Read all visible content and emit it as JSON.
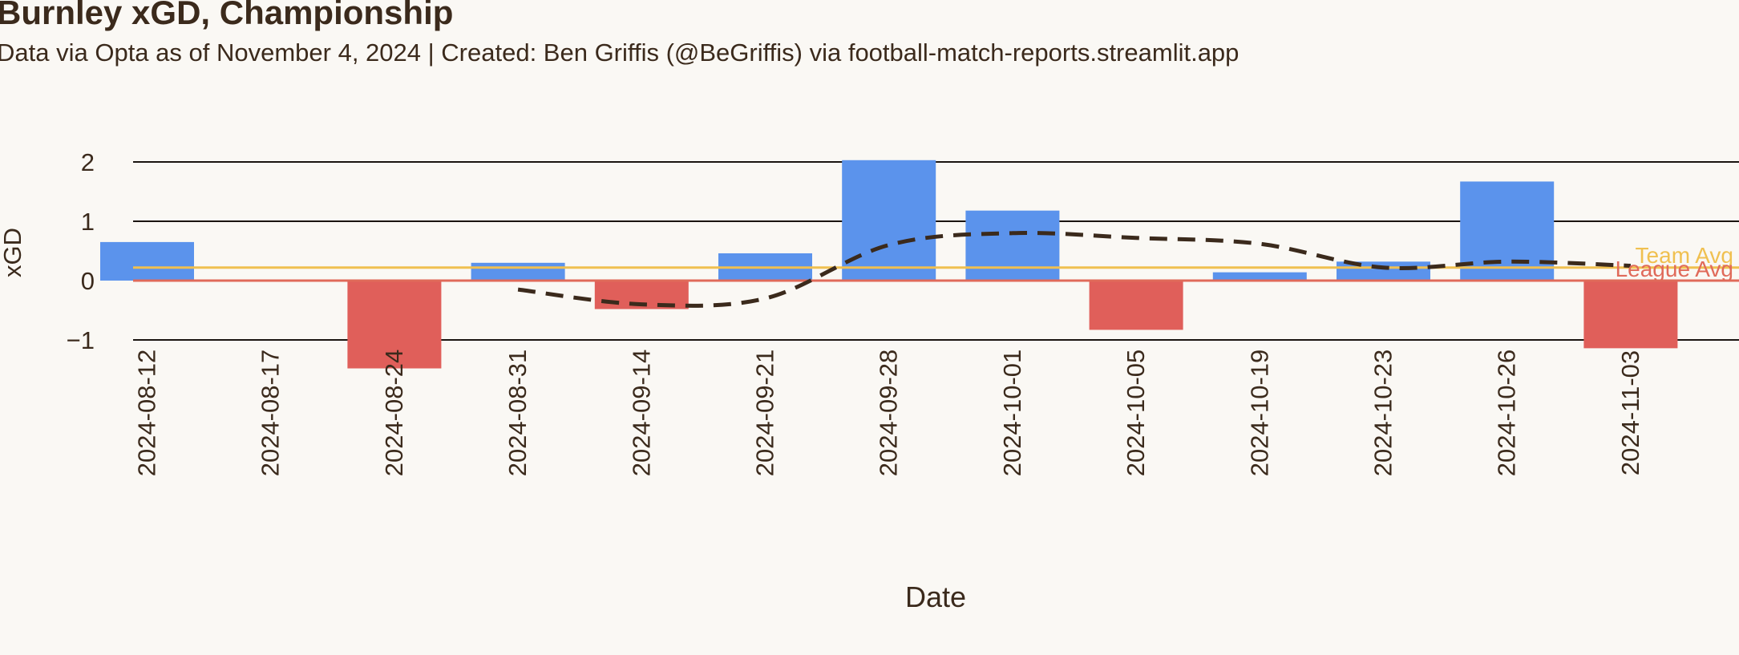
{
  "title": "Burnley xGD, Championship",
  "subtitle": "Data via Opta as of November 4, 2024 | Created: Ben Griffis (@BeGriffis) via football-match-reports.streamlit.app",
  "chart_data": {
    "type": "bar",
    "xlabel": "Date",
    "ylabel": "xGD",
    "ylim": [
      -1.5,
      2.1
    ],
    "yticks": [
      2,
      1,
      0,
      -1
    ],
    "ytick_labels": [
      "2",
      "1",
      "0",
      "−1"
    ],
    "grid": "horizontal",
    "categories": [
      "2024-08-12",
      "2024-08-17",
      "2024-08-24",
      "2024-08-31",
      "2024-09-14",
      "2024-09-21",
      "2024-09-28",
      "2024-10-01",
      "2024-10-05",
      "2024-10-19",
      "2024-10-23",
      "2024-10-26",
      "2024-11-03"
    ],
    "values": [
      0.65,
      0.0,
      -1.48,
      0.3,
      -0.48,
      0.46,
      2.03,
      1.18,
      -0.83,
      0.14,
      0.32,
      1.67,
      -1.14
    ],
    "rolling_avg": [
      null,
      null,
      null,
      -0.15,
      -0.4,
      -0.3,
      0.6,
      0.8,
      0.72,
      0.62,
      0.22,
      0.32,
      0.25
    ],
    "team_avg": 0.22,
    "league_avg": 0.0,
    "team_avg_label": "Team Avg",
    "league_avg_label": "League Avg",
    "colors": {
      "positive": "#5b93ec",
      "negative": "#e05f5a",
      "team_avg": "#f0c050",
      "league_avg": "#e06a5a",
      "rolling": "#3b2a1c",
      "grid": "#1a1410",
      "text": "#3b2a1c"
    }
  }
}
